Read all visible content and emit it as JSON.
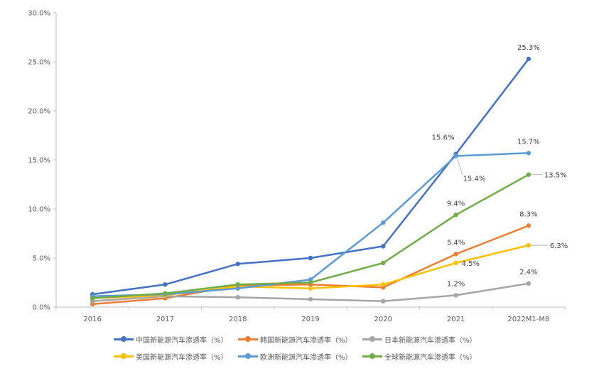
{
  "chart_data": {
    "type": "line",
    "categories": [
      "2016",
      "2017",
      "2018",
      "2019",
      "2020",
      "2021",
      "2022M1-M8"
    ],
    "ylim": [
      0,
      30
    ],
    "yticks": [
      "0.0%",
      "5.0%",
      "10.0%",
      "15.0%",
      "20.0%",
      "25.0%",
      "30.0%"
    ],
    "ytick_values": [
      0,
      5,
      10,
      15,
      20,
      25,
      30
    ],
    "grid": false,
    "legend_position": "bottom",
    "series": [
      {
        "name": "中国新能源汽车渗透率（%）",
        "color": "#4472C4",
        "values": [
          1.3,
          2.3,
          4.4,
          5.0,
          6.2,
          15.6,
          25.3
        ],
        "labels": [
          "",
          "",
          "",
          "",
          "",
          "15.6%",
          "25.3%"
        ]
      },
      {
        "name": "韩国新能源汽车渗透率（%）",
        "color": "#ED7D31",
        "values": [
          0.3,
          0.9,
          2.2,
          2.3,
          2.0,
          5.4,
          8.3
        ],
        "labels": [
          "",
          "",
          "",
          "",
          "",
          "5.4%",
          "8.3%"
        ]
      },
      {
        "name": "日本新能源汽车渗透率（%）",
        "color": "#A5A5A5",
        "values": [
          0.6,
          1.1,
          1.0,
          0.8,
          0.6,
          1.2,
          2.4
        ],
        "labels": [
          "",
          "",
          "",
          "",
          "",
          "1.2%",
          "2.4%"
        ]
      },
      {
        "name": "美国新能源汽车渗透率（%）",
        "color": "#FFC000",
        "values": [
          0.9,
          1.2,
          2.1,
          1.9,
          2.3,
          4.5,
          6.3
        ],
        "labels": [
          "",
          "",
          "",
          "",
          "",
          "4.5%",
          "6.3%"
        ]
      },
      {
        "name": "欧洲新能源汽车渗透率（%）",
        "color": "#5B9BD5",
        "values": [
          1.1,
          1.3,
          1.9,
          2.8,
          8.6,
          15.4,
          15.7
        ],
        "labels": [
          "",
          "",
          "",
          "",
          "",
          "15.4%",
          "15.7%"
        ]
      },
      {
        "name": "全球新能源汽车渗透率（%）",
        "color": "#70AD47",
        "values": [
          0.9,
          1.4,
          2.3,
          2.5,
          4.5,
          9.4,
          13.5
        ],
        "labels": [
          "",
          "",
          "",
          "",
          "",
          "9.4%",
          "13.5%"
        ]
      }
    ]
  }
}
